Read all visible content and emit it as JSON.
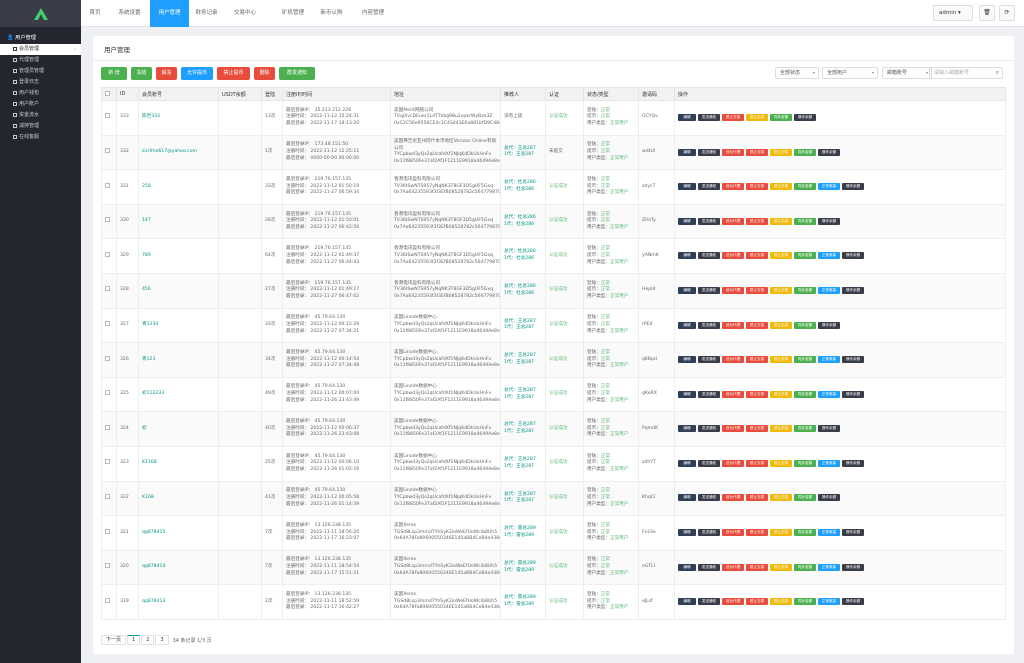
{
  "sidebar": {
    "section": "用户管理",
    "items": [
      {
        "label": "会员管理",
        "active": true
      },
      {
        "label": "代理管理"
      },
      {
        "label": "管理员管理"
      },
      {
        "label": "登录日志"
      },
      {
        "label": "用户钱包"
      },
      {
        "label": "用户账户"
      },
      {
        "label": "资金流水"
      },
      {
        "label": "减持管理"
      },
      {
        "label": "在线客服"
      }
    ]
  },
  "topbar": {
    "tabs": [
      "首页",
      "系统设置",
      "用户管理",
      "财务记录",
      "交易中心",
      "矿机管理",
      "新币认购",
      "内容管理"
    ],
    "active_tab": 2,
    "admin": "admin"
  },
  "panel": {
    "title": "用户管理"
  },
  "toolbar": {
    "buttons": [
      "新 增",
      "冻结",
      "解冻",
      "允许提币",
      "禁止提币",
      "删除",
      "群发通知"
    ],
    "filters": [
      "全部状态",
      "全部用户",
      "邮箱账号"
    ],
    "search_placeholder": "请输入邮箱账号"
  },
  "table": {
    "headers": [
      "",
      "ID",
      "会员账号",
      "USDT余额",
      "登陆",
      "注册IP/时间",
      "地址",
      "推荐人",
      "认证",
      "状态/类型",
      "邀请码",
      "操作"
    ],
    "rows": [
      {
        "id": "333",
        "account": "陈世333",
        "usdt": "",
        "logins": "13次",
        "ip": [
          "最后登录IP： 35.213.212.228",
          "注册时间： 2022-11-12 15:24:31",
          "最后登录： 2022-11-17 18:13:20"
        ],
        "addr": [
          "美国Merit网络公司",
          "TVqjXvcDEuer1LdTTkbg98u2vpkrWyBze3Z",
          "0xC2C56e9556CE4c1C4S443E6a881bfD9C4845AD4"
        ],
        "ref": [
          "没有上级"
        ],
        "auth": "认证成功",
        "status": [
          "登陆：正常",
          "提币：正常",
          "用户类型：正常用户"
        ],
        "code": "GCYQv",
        "ops": [
          "编辑",
          "发送通知",
          "禁止交易",
          "禁止交易",
          "同步金额",
          "操作余额"
        ],
        "opcls": [
          "b-edit",
          "b-send",
          "b-trade",
          "b-ban",
          "b-sync",
          "b-log"
        ]
      },
      {
        "id": "332",
        "account": "sicifmo617@yahoo.com",
        "usdt": "",
        "logins": "1次",
        "ip": [
          "最后登录IP： 173.48.151.50",
          "注册时间： 2022-11-12 12:25:11",
          "最后登录： 0000-00-00 00:00:00"
        ],
        "addr": [
          "美国弗吉尼亚州阿什本市地区Verizon Online有限公司",
          "TYCpbwd3yQs2qUcafdXf1NJqKdDkUoHnFv",
          "0x11f8850Fe37af2Af1F1211E9918a4649Ae8e2376"
        ],
        "ref": [
          "总代：王总287",
          "1代：王总287"
        ],
        "auth": "未提交",
        "status": [
          "登陆：正常",
          "提币：正常",
          "用户类型：正常用户"
        ],
        "code": "wdtUI",
        "ops": [
          "编辑",
          "发送通知",
          "设为代理",
          "禁止交易",
          "禁止交易",
          "同步金额",
          "操作余额"
        ],
        "opcls": [
          "b-edit",
          "b-send",
          "b-agent",
          "b-trade",
          "b-ban",
          "b-sync",
          "b-log"
        ]
      },
      {
        "id": "331",
        "account": "258",
        "usdt": "",
        "logins": "33次",
        "ip": [
          "最后登录IP： 219.76.157.135",
          "注册时间： 2022-11-12 01:50:19",
          "最后登录： 2022-11-27 06:59:34"
        ],
        "addr": [
          "香港电讯盈科有限公司",
          "TV36tSwNTS957yNqNK3T8GF3D5gUF5Gxq",
          "0x7Aa64235593f3f3EfB08528782c56477987096c7"
        ],
        "ref": [
          "总代：杜总286",
          "1代：杜总286"
        ],
        "auth": "认证成功",
        "status": [
          "登陆：正常",
          "提币：正常",
          "用户类型：正常用户"
        ],
        "code": "zdycT",
        "ops": [
          "编辑",
          "发送通知",
          "设为代理",
          "禁止交易",
          "禁止交易",
          "同步金额",
          "正常驱赢",
          "操作余额"
        ],
        "opcls": [
          "b-edit",
          "b-send",
          "b-agent",
          "b-trade",
          "b-ban",
          "b-sync",
          "b-normal",
          "b-log"
        ]
      },
      {
        "id": "330",
        "account": "147",
        "usdt": "",
        "logins": "28次",
        "ip": [
          "最后登录IP： 219.76.157.135",
          "注册时间： 2022-11-12 01:50:01",
          "最后登录： 2022-11-27 06:42:56"
        ],
        "addr": [
          "香港电讯盈科有限公司",
          "TV36tSwNTS957yNqNK3T8GF3D5gUF5Gxq",
          "0x7Aa64235593f3f3EfB08528782c56477987096c7"
        ],
        "ref": [
          "总代：杜总286",
          "1代：杜总286"
        ],
        "auth": "认证成功",
        "status": [
          "登陆：正常",
          "提币：正常",
          "用户类型：正常用户"
        ],
        "code": "ZHzTy",
        "ops": [
          "编辑",
          "发送通知",
          "设为代理",
          "禁止交易",
          "禁止交易",
          "同步金额",
          "操作余额"
        ],
        "opcls": [
          "b-edit",
          "b-send",
          "b-agent",
          "b-trade",
          "b-ban",
          "b-sync",
          "b-log"
        ]
      },
      {
        "id": "329",
        "account": "789",
        "usdt": "",
        "logins": "64次",
        "ip": [
          "最后登录IP： 219.76.157.135",
          "注册时间： 2022-11-12 01:49:37",
          "最后登录： 2022-11-27 06:44:43"
        ],
        "addr": [
          "香港电讯盈科有限公司",
          "TV36tSwNTS957yNqNK3T8GF3D5gUF5Gxq",
          "0x7Aa64235593f3f3EfB08528782c56477987096c7"
        ],
        "ref": [
          "总代：杜总286",
          "1代：杜总286"
        ],
        "auth": "认证成功",
        "status": [
          "登陆：正常",
          "提币：正常",
          "用户类型：正常用户"
        ],
        "code": "yANmK",
        "ops": [
          "编辑",
          "发送通知",
          "设为代理",
          "禁止交易",
          "禁止交易",
          "同步金额",
          "正常驱赢",
          "操作余额"
        ],
        "opcls": [
          "b-edit",
          "b-send",
          "b-agent",
          "b-trade",
          "b-ban",
          "b-sync",
          "b-normal",
          "b-log"
        ]
      },
      {
        "id": "328",
        "account": "456",
        "usdt": "",
        "logins": "27次",
        "ip": [
          "最后登录IP： 219.76.157.135",
          "注册时间： 2022-11-12 01:49:17",
          "最后登录： 2022-11-27 06:47:02"
        ],
        "addr": [
          "香港电讯盈科有限公司",
          "TV36tSwNTS957yNqNK3T8GF3D5gUF5Gxq",
          "0x7Aa64235593f3f3EfB08528782c56477987096c7"
        ],
        "ref": [
          "总代：杜总286",
          "1代：杜总286"
        ],
        "auth": "认证成功",
        "status": [
          "登陆：正常",
          "提币：正常",
          "用户类型：正常用户"
        ],
        "code": "Hepld",
        "ops": [
          "编辑",
          "发送通知",
          "设为代理",
          "禁止交易",
          "禁止交易",
          "同步金额",
          "正常驱赢",
          "操作余额"
        ],
        "opcls": [
          "b-edit",
          "b-send",
          "b-agent",
          "b-trade",
          "b-ban",
          "b-sync",
          "b-normal",
          "b-log"
        ]
      },
      {
        "id": "327",
        "account": "青1234",
        "usdt": "",
        "logins": "33次",
        "ip": [
          "最后登录IP： 45.79.64.130",
          "注册时间： 2022-11-12 00:15:29",
          "最后登录： 2022-11-27 07:34:21"
        ],
        "addr": [
          "美国Linode数据中心",
          "TYCpbwd3yQs2qUcafdXf1NJqKdDkUoHnFv",
          "0x11f8850Fe37af2Af1F1211E9918a4649Ae8e2376"
        ],
        "ref": [
          "总代：王总287",
          "1代：王总287"
        ],
        "auth": "认证成功",
        "status": [
          "登陆：正常",
          "提币：正常",
          "用户类型：正常用户"
        ],
        "code": "rPEd",
        "ops": [
          "编辑",
          "发送通知",
          "设为代理",
          "禁止交易",
          "禁止交易",
          "同步金额",
          "操作余额"
        ],
        "opcls": [
          "b-edit",
          "b-send",
          "b-agent",
          "b-trade",
          "b-ban",
          "b-sync",
          "b-log"
        ]
      },
      {
        "id": "326",
        "account": "青123",
        "usdt": "",
        "logins": "34次",
        "ip": [
          "最后登录IP： 45.79.64.130",
          "注册时间： 2022-11-12 00:14:54",
          "最后登录： 2022-11-27 07:34:48"
        ],
        "addr": [
          "美国Linode数据中心",
          "TYCpbwd3yQs2qUcafdXf1NJqKdDkUoHnFv",
          "0x11f8850Fe37af2Af1F1211E9918a4649Ae8e2376"
        ],
        "ref": [
          "总代：王总287",
          "1代：王总287"
        ],
        "auth": "认证成功",
        "status": [
          "登陆：正常",
          "提币：正常",
          "用户类型：正常用户"
        ],
        "code": "qKBpd",
        "ops": [
          "编辑",
          "发送通知",
          "设为代理",
          "禁止交易",
          "禁止交易",
          "同步金额",
          "正常驱赢",
          "操作余额"
        ],
        "opcls": [
          "b-edit",
          "b-send",
          "b-agent",
          "b-trade",
          "b-ban",
          "b-sync",
          "b-normal",
          "b-log"
        ]
      },
      {
        "id": "325",
        "account": "初112233",
        "usdt": "",
        "logins": "49次",
        "ip": [
          "最后登录IP： 45.79.64.130",
          "注册时间： 2022-11-12 00:07:00",
          "最后登录： 2022-11-26 23:43:49"
        ],
        "addr": [
          "美国Linode数据中心",
          "TYCpbwd3yQs2qUcafdXf1NJqKdDkUoHnFv",
          "0x11f8850Fe37af2Af1F1211E9918a4649Ae8e2376"
        ],
        "ref": [
          "总代：王总287",
          "1代：王总287"
        ],
        "auth": "认证成功",
        "status": [
          "登陆：正常",
          "提币：正常",
          "用户类型：正常用户"
        ],
        "code": "gKeRX",
        "ops": [
          "编辑",
          "发送通知",
          "设为代理",
          "禁止交易",
          "禁止交易",
          "同步金额",
          "正常驱赢",
          "操作余额"
        ],
        "opcls": [
          "b-edit",
          "b-send",
          "b-agent",
          "b-trade",
          "b-ban",
          "b-sync",
          "b-normal",
          "b-log"
        ]
      },
      {
        "id": "324",
        "account": "初",
        "usdt": "",
        "logins": "40次",
        "ip": [
          "最后登录IP： 45.79.64.130",
          "注册时间： 2022-11-12 00:06:37",
          "最后登录： 2022-11-26 23:43:08"
        ],
        "addr": [
          "美国Linode数据中心",
          "TYCpbwd3yQs2qUcafdXf1NJqKdDkUoHnFv",
          "0x11f8850Fe37af2Af1F1211E9918a4649Ae8e2376"
        ],
        "ref": [
          "总代：王总287",
          "1代：王总287"
        ],
        "auth": "认证成功",
        "status": [
          "登陆：正常",
          "提币：正常",
          "用户类型：正常用户"
        ],
        "code": "PqmdK",
        "ops": [
          "编辑",
          "发送通知",
          "设为代理",
          "禁止交易",
          "禁止交易",
          "同步金额",
          "操作余额"
        ],
        "opcls": [
          "b-edit",
          "b-send",
          "b-agent",
          "b-trade",
          "b-ban",
          "b-sync",
          "b-log"
        ]
      },
      {
        "id": "323",
        "account": "K1168",
        "usdt": "",
        "logins": "25次",
        "ip": [
          "最后登录IP： 45.79.64.130",
          "注册时间： 2022-11-12 00:06:10",
          "最后登录： 2022-11-26 01:02:16"
        ],
        "addr": [
          "美国Linode数据中心",
          "TYCpbwd3yQs2qUcafdXf1NJqKdDkUoHnFv",
          "0x11f8850Fe37af2Af1F1211E9918a4649Ae8e2376"
        ],
        "ref": [
          "总代：王总287",
          "1代：王总287"
        ],
        "auth": "认证成功",
        "status": [
          "登陆：正常",
          "提币：正常",
          "用户类型：正常用户"
        ],
        "code": "zdhYT",
        "ops": [
          "编辑",
          "发送通知",
          "设为代理",
          "禁止交易",
          "禁止交易",
          "同步金额",
          "正常驱赢",
          "操作余额"
        ],
        "opcls": [
          "b-edit",
          "b-send",
          "b-agent",
          "b-trade",
          "b-ban",
          "b-sync",
          "b-normal",
          "b-log"
        ]
      },
      {
        "id": "322",
        "account": "K168",
        "usdt": "",
        "logins": "41次",
        "ip": [
          "最后登录IP： 45.79.64.130",
          "注册时间： 2022-11-12 00:05:58",
          "最后登录： 2022-11-26 01:14:39"
        ],
        "addr": [
          "美国Linode数据中心",
          "TYCpbwd3yQs2qUcafdXf1NJqKdDkUoHnFv",
          "0x11f8850Fe37af2Af1F1211E9918a4649Ae8e2376"
        ],
        "ref": [
          "总代：王总287",
          "1代：王总287"
        ],
        "auth": "认证成功",
        "status": [
          "登陆：正常",
          "提币：正常",
          "用户类型：正常用户"
        ],
        "code": "KhqCl",
        "ops": [
          "编辑",
          "发送通知",
          "设为代理",
          "禁止交易",
          "禁止交易",
          "同步金额",
          "操作余额"
        ],
        "opcls": [
          "b-edit",
          "b-send",
          "b-agent",
          "b-trade",
          "b-ban",
          "b-sync",
          "b-log"
        ]
      },
      {
        "id": "321",
        "account": "qq878415",
        "usdt": "",
        "logins": "7次",
        "ip": [
          "最后登录IP： 13.126.238.135",
          "注册时间： 2022-11-11 18:56:20",
          "最后登录： 2022-11-17 16:23:07"
        ],
        "addr": [
          "美国Xerox",
          "TGSd8Lsp3mmdTYhSyK2ioWeEfUoWcib8Uh5",
          "0x64A78Fa80600550346E145aBB4CeB4e438c4e98C"
        ],
        "ref": [
          "总代：雷总289",
          "1代：雷总289"
        ],
        "auth": "认证成功",
        "status": [
          "登陆：正常",
          "提币：正常",
          "用户类型：正常用户"
        ],
        "code": "FnLSe",
        "ops": [
          "编辑",
          "发送通知",
          "设为代理",
          "禁止交易",
          "禁止交易",
          "同步金额",
          "正常驱赢",
          "操作余额"
        ],
        "opcls": [
          "b-edit",
          "b-send",
          "b-agent",
          "b-trade",
          "b-ban",
          "b-sync",
          "b-normal",
          "b-log"
        ]
      },
      {
        "id": "320",
        "account": "qq878414",
        "usdt": "",
        "logins": "7次",
        "ip": [
          "最后登录IP： 13.126.238.135",
          "注册时间： 2022-11-11 18:54:54",
          "最后登录： 2022-11-17 15:51:21"
        ],
        "addr": [
          "美国Xerox",
          "TGSd8Lsp3mmdTYhSyK2ioWeEfUoWcib8Uh5",
          "0x64A78Fa80600550346E145aBB4CeB4e438c4e98C"
        ],
        "ref": [
          "总代：雷总289",
          "1代：雷总289"
        ],
        "auth": "认证成功",
        "status": [
          "登陆：正常",
          "提币：正常",
          "用户类型：正常用户"
        ],
        "code": "eGTLI",
        "ops": [
          "编辑",
          "发送通知",
          "设为代理",
          "禁止交易",
          "禁止交易",
          "同步金额",
          "正常驱赢",
          "操作余额"
        ],
        "opcls": [
          "b-edit",
          "b-send",
          "b-agent",
          "b-trade",
          "b-ban",
          "b-sync",
          "b-normal",
          "b-log"
        ]
      },
      {
        "id": "319",
        "account": "qq878413",
        "usdt": "",
        "logins": "2次",
        "ip": [
          "最后登录IP： 13.126.238.135",
          "注册时间： 2022-11-11 18:52:59",
          "最后登录： 2022-11-17 16:42:27"
        ],
        "addr": [
          "美国Xerox",
          "TGSd8Lsp3mmdTYhSyK2ioWeEfUoWcib8Uh5",
          "0x64A78Fa80600550346E145aBB4CeB4e438c4e98C"
        ],
        "ref": [
          "总代：雷总289",
          "1代：雷总289"
        ],
        "auth": "认证成功",
        "status": [
          "登陆：正常",
          "提币：正常",
          "用户类型：正常用户"
        ],
        "code": "eJLsf",
        "ops": [
          "编辑",
          "发送通知",
          "设为代理",
          "禁止交易",
          "禁止交易",
          "同步金额",
          "正常驱赢",
          "操作余额"
        ],
        "opcls": [
          "b-edit",
          "b-send",
          "b-agent",
          "b-trade",
          "b-ban",
          "b-sync",
          "b-normal",
          "b-log"
        ]
      }
    ]
  },
  "pagination": {
    "prev": "下一页",
    "pages": [
      "1",
      "2",
      "3"
    ],
    "info": "34 条记录 1/3 页"
  },
  "colors": {
    "sidebar": "#23262e",
    "accent": "#1e9fff",
    "green": "#009688",
    "red": "#e74c3c",
    "yellow": "#f0b90b"
  }
}
